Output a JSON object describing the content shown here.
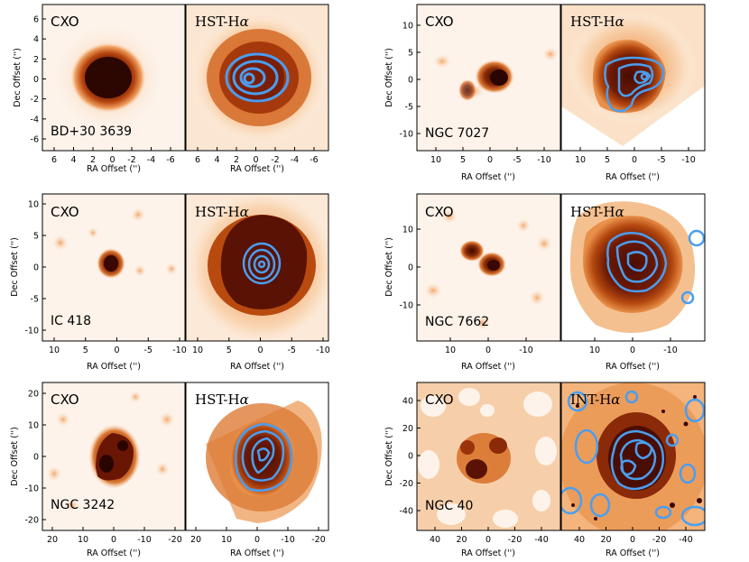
{
  "figure": {
    "panels": [
      {
        "object": "BD+30 3639",
        "xray_label": "CXO",
        "optical_label": "HST-H",
        "optical_greek": "α",
        "xaxis_label": "RA Offset ('')",
        "yaxis_label": "Dec Offset ('')",
        "xticks": [
          "6",
          "4",
          "2",
          "0",
          "-2",
          "-4",
          "-6"
        ],
        "yticks": [
          "6",
          "4",
          "2",
          "0",
          "-2",
          "-4",
          "-6"
        ]
      },
      {
        "object": "NGC 7027",
        "xray_label": "CXO",
        "optical_label": "HST-H",
        "optical_greek": "α",
        "xaxis_label": "RA Offset ('')",
        "yaxis_label": "Dec Offset ('')",
        "xticks": [
          "10",
          "5",
          "0",
          "-5",
          "-10"
        ],
        "yticks": [
          "10",
          "5",
          "0",
          "-5",
          "-10"
        ]
      },
      {
        "object": "IC 418",
        "xray_label": "CXO",
        "optical_label": "HST-H",
        "optical_greek": "α",
        "xaxis_label": "RA Offset ('')",
        "yaxis_label": "Dec Offset ('')",
        "xticks": [
          "10",
          "5",
          "0",
          "-5",
          "-10"
        ],
        "yticks": [
          "10",
          "5",
          "0",
          "-5",
          "-10"
        ]
      },
      {
        "object": "NGC 7662",
        "xray_label": "CXO",
        "optical_label": "HST-H",
        "optical_greek": "α",
        "xaxis_label": "RA Offset ('')",
        "yaxis_label": "Dec Offset ('')",
        "xticks": [
          "10",
          "0",
          "-10"
        ],
        "yticks": [
          "10",
          "0",
          "-10"
        ]
      },
      {
        "object": "NGC 3242",
        "xray_label": "CXO",
        "optical_label": "HST-H",
        "optical_greek": "α",
        "xaxis_label": "RA Offset ('')",
        "yaxis_label": "Dec Offset ('')",
        "xticks": [
          "20",
          "10",
          "0",
          "-10",
          "-20"
        ],
        "yticks": [
          "20",
          "10",
          "0",
          "-10",
          "-20"
        ]
      },
      {
        "object": "NGC 40",
        "xray_label": "CXO",
        "optical_label": "INT-H",
        "optical_greek": "α",
        "xaxis_label": "RA Offset ('')",
        "yaxis_label": "Dec Offset ('')",
        "xticks": [
          "40",
          "20",
          "0",
          "-20",
          "-40"
        ],
        "yticks": [
          "40",
          "20",
          "0",
          "-20",
          "-40"
        ]
      }
    ]
  },
  "colors": {
    "background": "#ffffff",
    "image_light": "#fbe8d6",
    "image_mid": "#e07a2a",
    "image_dark": "#3a0a02",
    "contour": "#4a9ef0",
    "axis": "#000000"
  }
}
